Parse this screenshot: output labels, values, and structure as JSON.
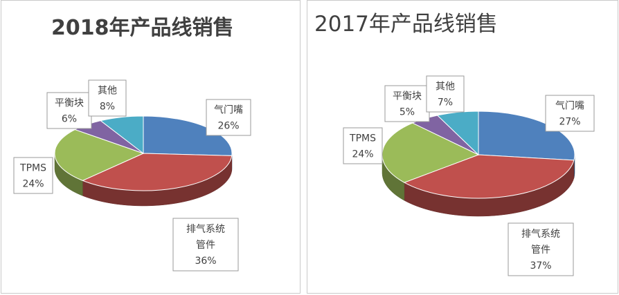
{
  "chart_data": [
    {
      "type": "pie",
      "title": "2018年产品线销售",
      "slices": [
        {
          "name": "气门嘴",
          "value": 26,
          "label": "26%",
          "color": "#4F81BD"
        },
        {
          "name": "排气系统管件",
          "label_lines": [
            "排气系统",
            "管件"
          ],
          "value": 36,
          "label": "36%",
          "color": "#C0504D"
        },
        {
          "name": "TPMS",
          "value": 24,
          "label": "24%",
          "color": "#9BBB59"
        },
        {
          "name": "平衡块",
          "value": 6,
          "label": "6%",
          "color": "#8064A2"
        },
        {
          "name": "其他",
          "value": 8,
          "label": "8%",
          "color": "#4BACC6"
        }
      ]
    },
    {
      "type": "pie",
      "title": "2017年产品线销售",
      "slices": [
        {
          "name": "气门嘴",
          "value": 27,
          "label": "27%",
          "color": "#4F81BD"
        },
        {
          "name": "排气系统管件",
          "label_lines": [
            "排气系统",
            "管件"
          ],
          "value": 37,
          "label": "37%",
          "color": "#C0504D"
        },
        {
          "name": "TPMS",
          "value": 24,
          "label": "24%",
          "color": "#9BBB59"
        },
        {
          "name": "平衡块",
          "value": 5,
          "label": "5%",
          "color": "#8064A2"
        },
        {
          "name": "其他",
          "value": 7,
          "label": "7%",
          "color": "#4BACC6"
        }
      ]
    }
  ]
}
